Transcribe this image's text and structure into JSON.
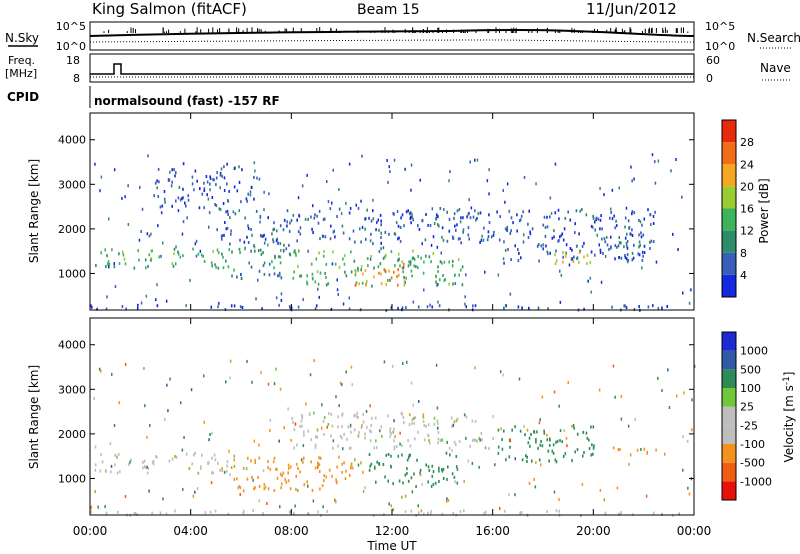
{
  "header": {
    "site": "King Salmon (fitACF)",
    "beam": "Beam 15",
    "date": "11/Jun/2012"
  },
  "strips": {
    "nsky_label": "N.Sky",
    "nsearch_label": "N.Search",
    "noise_ticks_left": [
      "10^5",
      "10^0"
    ],
    "noise_ticks_right": [
      "10^5",
      "10^0"
    ],
    "freq_label": "Freq.",
    "freq_unit": "[MHz]",
    "freq_ticks": [
      "18",
      "8"
    ],
    "nave_label": "Nave",
    "nave_ticks": [
      "60",
      "0"
    ],
    "cpid_label": "CPID",
    "cpid_text": "normalsound (fast) -157 RF"
  },
  "colors": {
    "power": [
      "#1428e0",
      "#3a5fb8",
      "#2e8c6a",
      "#3db35a",
      "#9acd32",
      "#f5a623",
      "#f26d1a",
      "#e82a0a"
    ],
    "velocity": [
      "#e8100a",
      "#f05d12",
      "#f5921f",
      "#bebebe",
      "#bebebe",
      "#6ec83a",
      "#2e8b57",
      "#2f5aa8",
      "#1c2ad6"
    ]
  },
  "chart_data": [
    {
      "type": "heatmap",
      "quantity": "power",
      "ylabel": "Slant Range [km]",
      "yticks": [
        1000,
        2000,
        3000,
        4000
      ],
      "ylim": [
        180,
        4600
      ],
      "xlim": [
        0,
        24
      ],
      "colorbar": {
        "label": "Power [dB]",
        "ticks": [
          "4",
          "8",
          "12",
          "16",
          "20",
          "24",
          "28"
        ],
        "range": [
          0,
          32
        ]
      },
      "features": [
        {
          "t_start": 0.0,
          "t_end": 24.0,
          "r_min": 200,
          "r_max": 320,
          "value": 4
        },
        {
          "t_start": 0.0,
          "t_end": 5.5,
          "r_min": 1150,
          "r_max": 1600,
          "value": 13
        },
        {
          "t_start": 5.5,
          "t_end": 8.0,
          "r_min": 900,
          "r_max": 1700,
          "value": 10
        },
        {
          "t_start": 8.0,
          "t_end": 14.8,
          "r_min": 750,
          "r_max": 1550,
          "value": 14
        },
        {
          "t_start": 10.5,
          "t_end": 12.5,
          "r_min": 750,
          "r_max": 1300,
          "value": 24
        },
        {
          "t_start": 5.0,
          "t_end": 16.0,
          "r_min": 1700,
          "r_max": 2500,
          "value": 6
        },
        {
          "t_start": 16.0,
          "t_end": 22.5,
          "r_min": 1300,
          "r_max": 2500,
          "value": 5
        },
        {
          "t_start": 18.3,
          "t_end": 20.2,
          "r_min": 1250,
          "r_max": 1550,
          "value": 20
        },
        {
          "t_start": 21.0,
          "t_end": 22.4,
          "r_min": 1550,
          "r_max": 1750,
          "value": 8
        },
        {
          "t_start": 2.5,
          "t_end": 6.5,
          "r_min": 2500,
          "r_max": 3500,
          "value": 5
        }
      ]
    },
    {
      "type": "heatmap",
      "quantity": "velocity",
      "ylabel": "Slant Range [km]",
      "yticks": [
        1000,
        2000,
        3000,
        4000
      ],
      "ylim": [
        180,
        4600
      ],
      "xlim": [
        0,
        24
      ],
      "xlabel": "Time UT",
      "xticks": [
        "00:00",
        "04:00",
        "08:00",
        "12:00",
        "16:00",
        "20:00",
        "00:00"
      ],
      "colorbar": {
        "label": "Velocity [m s^-1]",
        "ticks": [
          "1000",
          "500",
          "100",
          "25",
          "-25",
          "-100",
          "-500",
          "-1000"
        ]
      },
      "features": [
        {
          "t_start": 0.0,
          "t_end": 24.0,
          "r_min": 200,
          "r_max": 320,
          "value": 0
        },
        {
          "t_start": 0.0,
          "t_end": 5.5,
          "r_min": 1150,
          "r_max": 1600,
          "value": 0
        },
        {
          "t_start": 5.5,
          "t_end": 9.5,
          "r_min": 750,
          "r_max": 1500,
          "value": -300
        },
        {
          "t_start": 9.5,
          "t_end": 11.0,
          "r_min": 900,
          "r_max": 1400,
          "value": -300
        },
        {
          "t_start": 11.0,
          "t_end": 14.8,
          "r_min": 850,
          "r_max": 1600,
          "value": 250
        },
        {
          "t_start": 8.0,
          "t_end": 16.0,
          "r_min": 1700,
          "r_max": 2500,
          "value": 0
        },
        {
          "t_start": 16.0,
          "t_end": 20.0,
          "r_min": 1400,
          "r_max": 2200,
          "value": 200
        },
        {
          "t_start": 20.5,
          "t_end": 22.5,
          "r_min": 1550,
          "r_max": 1750,
          "value": -300
        }
      ]
    }
  ]
}
